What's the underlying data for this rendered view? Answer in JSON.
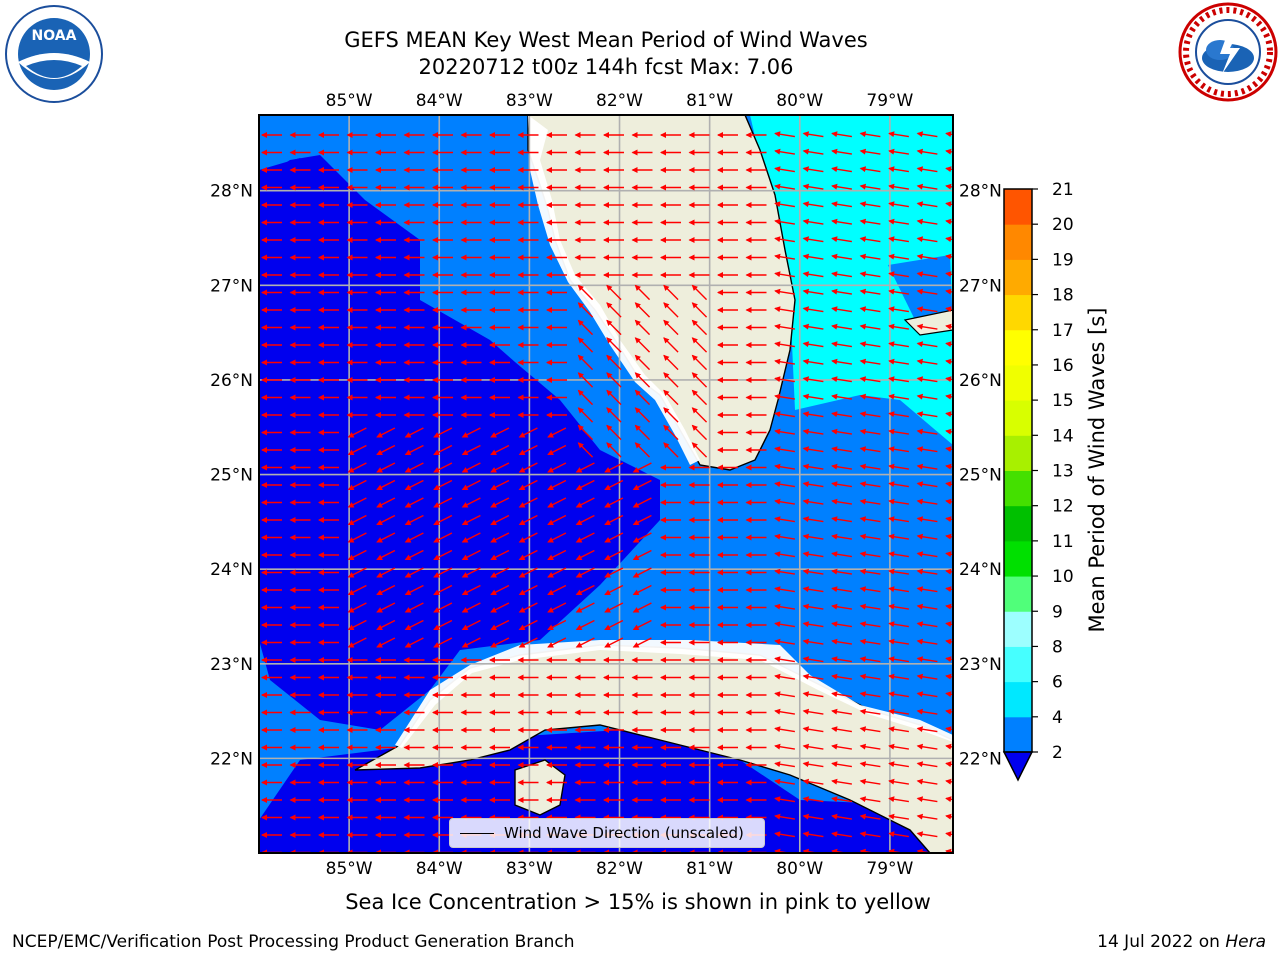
{
  "title_line1": "GEFS MEAN Key West Mean Period of Wind Waves",
  "title_line2": "20220712 t00z 144h fcst   Max: 7.06",
  "logos": {
    "left": "noaa-logo",
    "right": "nws-logo"
  },
  "map": {
    "lon_labels": [
      "85°W",
      "84°W",
      "83°W",
      "82°W",
      "81°W",
      "80°W",
      "79°W"
    ],
    "lon_values": [
      -85,
      -84,
      -83,
      -82,
      -81,
      -80,
      -79
    ],
    "lat_labels": [
      "22°N",
      "23°N",
      "24°N",
      "25°N",
      "26°N",
      "27°N",
      "28°N"
    ],
    "lat_values": [
      22,
      23,
      24,
      25,
      26,
      27,
      28
    ],
    "extent": {
      "lon_min": -86.0,
      "lon_max": -78.3,
      "lat_min": 21.0,
      "lat_max": 28.8
    },
    "colors": {
      "land": "#eeeedc",
      "period_2_4": "#0080ff",
      "period_below_2": "#0000ee",
      "period_4_6": "#00ffff",
      "arrow": "#ff0000",
      "grid": "#b0b0b0"
    }
  },
  "legend": {
    "label": "Wind Wave Direction (unscaled)"
  },
  "colorbar": {
    "label": "Mean Period of Wind Waves [s]",
    "ticks": [
      2,
      4,
      6,
      8,
      9,
      10,
      11,
      12,
      13,
      14,
      15,
      16,
      17,
      18,
      19,
      20,
      21
    ],
    "colors": [
      "#0080ff",
      "#00e8ff",
      "#46ffff",
      "#9dffff",
      "#50ff7a",
      "#00e000",
      "#00c000",
      "#44e000",
      "#a8f000",
      "#d8ff00",
      "#f0ff00",
      "#ffff00",
      "#ffd800",
      "#ffaa00",
      "#ff8800",
      "#ff5500",
      "#ff2a00",
      "#ff0000"
    ]
  },
  "ice_note": "Sea Ice Concentration > 15% is shown in pink to yellow",
  "footer": {
    "left": "NCEP/EMC/Verification Post Processing Product Generation Branch",
    "date": "14 Jul 2022 on ",
    "host": "Hera"
  }
}
